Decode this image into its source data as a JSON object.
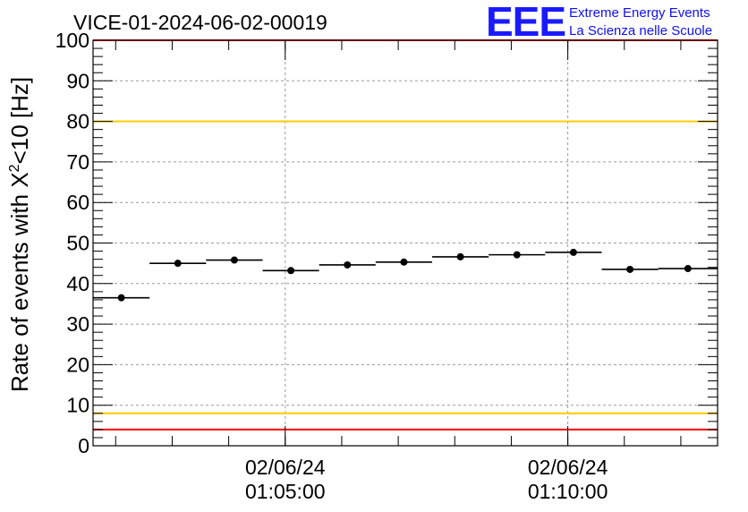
{
  "header": {
    "run_title": "VICE-01-2024-06-02-00019",
    "logo_text": "EEE",
    "logo_line1": "Extreme Energy Events",
    "logo_line2": "La Scienza nelle Scuole"
  },
  "chart_data": {
    "type": "scatter",
    "title": "VICE-01-2024-06-02-00019",
    "ylabel_main": "Rate of events with X",
    "ylabel_sup": "2",
    "ylabel_tail": "<10 [Hz]",
    "ylim": [
      0,
      100
    ],
    "yticks": [
      0,
      10,
      20,
      30,
      40,
      50,
      60,
      70,
      80,
      90,
      100
    ],
    "xticks": [
      {
        "t": 300,
        "date": "02/06/24",
        "time": "01:05:00"
      },
      {
        "t": 600,
        "date": "02/06/24",
        "time": "01:10:00"
      }
    ],
    "xlim_seconds": [
      96,
      759
    ],
    "x_unit": "seconds after 01:00:00 on 02/06/24",
    "grid": true,
    "series": [
      {
        "points": [
          {
            "x0": 96,
            "x1": 156,
            "y": 36.5
          },
          {
            "x0": 156,
            "x1": 216,
            "y": 45.0
          },
          {
            "x0": 216,
            "x1": 276,
            "y": 45.8
          },
          {
            "x0": 276,
            "x1": 336,
            "y": 43.2
          },
          {
            "x0": 336,
            "x1": 396,
            "y": 44.6
          },
          {
            "x0": 396,
            "x1": 456,
            "y": 45.3
          },
          {
            "x0": 456,
            "x1": 516,
            "y": 46.6
          },
          {
            "x0": 516,
            "x1": 576,
            "y": 47.1
          },
          {
            "x0": 576,
            "x1": 636,
            "y": 47.7
          },
          {
            "x0": 636,
            "x1": 696,
            "y": 43.5
          },
          {
            "x0": 696,
            "x1": 759,
            "y": 43.7
          }
        ]
      }
    ],
    "reference_lines": [
      {
        "y": 100,
        "color": "#ff0000"
      },
      {
        "y": 80,
        "color": "#ffcc00"
      },
      {
        "y": 8,
        "color": "#ffcc00"
      },
      {
        "y": 4,
        "color": "#ff0000"
      }
    ]
  }
}
